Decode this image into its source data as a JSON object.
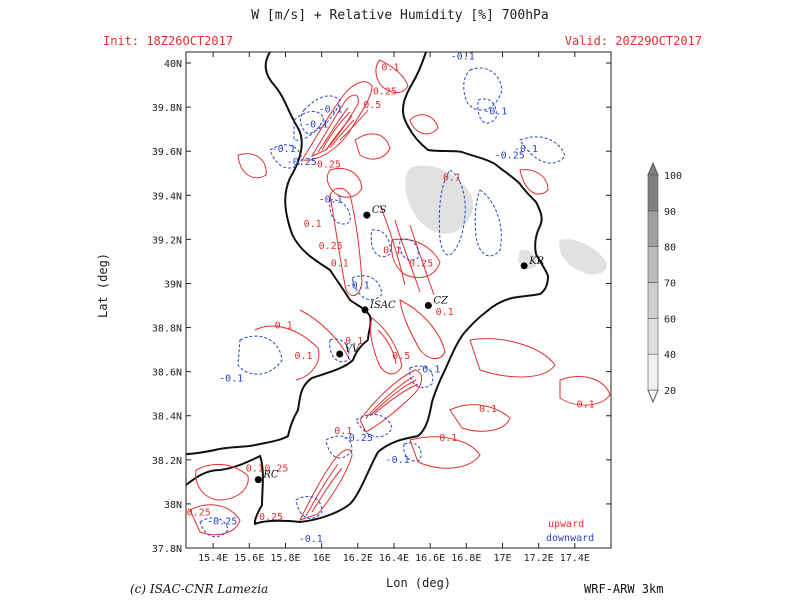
{
  "header": {
    "title": "W [m/s] + Relative Humidity [%] 700hPa",
    "init": "Init: 18Z26OCT2017",
    "valid": "Valid: 20Z29OCT2017"
  },
  "axes": {
    "xlabel": "Lon (deg)",
    "ylabel": "Lat (deg)",
    "lon_range": [
      15.25,
      17.6
    ],
    "lat_range": [
      37.8,
      40.05
    ],
    "lon_ticks": [
      "15.4E",
      "15.6E",
      "15.8E",
      "16E",
      "16.2E",
      "16.4E",
      "16.6E",
      "16.8E",
      "17E",
      "17.2E",
      "17.4E"
    ],
    "lon_values": [
      15.4,
      15.6,
      15.8,
      16.0,
      16.2,
      16.4,
      16.6,
      16.8,
      17.0,
      17.2,
      17.4
    ],
    "lat_ticks": [
      "37.8N",
      "38N",
      "38.2N",
      "38.4N",
      "38.6N",
      "38.8N",
      "39N",
      "39.2N",
      "39.4N",
      "39.6N",
      "39.8N",
      "40N"
    ],
    "lat_values": [
      37.8,
      38.0,
      38.2,
      38.4,
      38.6,
      38.8,
      39.0,
      39.2,
      39.4,
      39.6,
      39.8,
      40.0
    ]
  },
  "colorbar": {
    "labels": [
      "20",
      "40",
      "60",
      "70",
      "80",
      "90",
      "100"
    ],
    "colors": [
      "#ffffff",
      "#f0f0f0",
      "#e0e0e0",
      "#cfcfcf",
      "#bbbbbb",
      "#a0a0a0",
      "#808080"
    ]
  },
  "cities": [
    {
      "name": "CS",
      "lon": 16.25,
      "lat": 39.31
    },
    {
      "name": "KR",
      "lon": 17.12,
      "lat": 39.08
    },
    {
      "name": "CZ",
      "lon": 16.59,
      "lat": 38.9
    },
    {
      "name": "ISAC",
      "lon": 16.24,
      "lat": 38.88
    },
    {
      "name": "VV",
      "lon": 16.1,
      "lat": 38.68
    },
    {
      "name": "RC",
      "lon": 15.65,
      "lat": 38.11
    }
  ],
  "contour_labels": [
    {
      "text": "0.1",
      "lon": 16.38,
      "lat": 39.98,
      "color": "red"
    },
    {
      "text": "-0.1",
      "lon": 16.78,
      "lat": 40.03,
      "color": "blue"
    },
    {
      "text": "0.25",
      "lon": 16.35,
      "lat": 39.87,
      "color": "red"
    },
    {
      "text": "0.5",
      "lon": 16.28,
      "lat": 39.81,
      "color": "red"
    },
    {
      "text": "-0.1",
      "lon": 16.05,
      "lat": 39.79,
      "color": "blue"
    },
    {
      "text": "-0.1",
      "lon": 15.97,
      "lat": 39.72,
      "color": "blue"
    },
    {
      "text": "-0.1",
      "lon": 16.96,
      "lat": 39.78,
      "color": "blue"
    },
    {
      "text": "-0.1",
      "lon": 15.79,
      "lat": 39.61,
      "color": "blue"
    },
    {
      "text": "-0.25",
      "lon": 15.89,
      "lat": 39.55,
      "color": "blue"
    },
    {
      "text": "0.25",
      "lon": 16.04,
      "lat": 39.54,
      "color": "red"
    },
    {
      "text": "-0.25",
      "lon": 17.04,
      "lat": 39.58,
      "color": "blue"
    },
    {
      "text": "-0.1",
      "lon": 17.13,
      "lat": 39.61,
      "color": "blue"
    },
    {
      "text": "0.1",
      "lon": 16.72,
      "lat": 39.48,
      "color": "red"
    },
    {
      "text": "-0.1",
      "lon": 16.05,
      "lat": 39.38,
      "color": "blue"
    },
    {
      "text": "0.1",
      "lon": 15.95,
      "lat": 39.27,
      "color": "red"
    },
    {
      "text": "0.25",
      "lon": 16.05,
      "lat": 39.17,
      "color": "red"
    },
    {
      "text": "0.1",
      "lon": 16.1,
      "lat": 39.09,
      "color": "red"
    },
    {
      "text": "0.1",
      "lon": 16.39,
      "lat": 39.15,
      "color": "red"
    },
    {
      "text": "0.25",
      "lon": 16.55,
      "lat": 39.09,
      "color": "red"
    },
    {
      "text": "-0.1",
      "lon": 16.2,
      "lat": 38.99,
      "color": "blue"
    },
    {
      "text": "0.1",
      "lon": 16.68,
      "lat": 38.87,
      "color": "red"
    },
    {
      "text": "0.1",
      "lon": 15.79,
      "lat": 38.81,
      "color": "red"
    },
    {
      "text": "0.1",
      "lon": 16.18,
      "lat": 38.74,
      "color": "red"
    },
    {
      "text": "0.1",
      "lon": 15.9,
      "lat": 38.67,
      "color": "red"
    },
    {
      "text": "0.5",
      "lon": 16.44,
      "lat": 38.67,
      "color": "red"
    },
    {
      "text": "-0.1",
      "lon": 16.59,
      "lat": 38.61,
      "color": "blue"
    },
    {
      "text": "-0.1",
      "lon": 15.5,
      "lat": 38.57,
      "color": "blue"
    },
    {
      "text": "0.1",
      "lon": 16.92,
      "lat": 38.43,
      "color": "red"
    },
    {
      "text": "0.1",
      "lon": 17.46,
      "lat": 38.45,
      "color": "red"
    },
    {
      "text": "0.1",
      "lon": 16.12,
      "lat": 38.33,
      "color": "red"
    },
    {
      "text": "-0.25",
      "lon": 16.2,
      "lat": 38.3,
      "color": "blue"
    },
    {
      "text": "0.1",
      "lon": 16.7,
      "lat": 38.3,
      "color": "red"
    },
    {
      "text": "-0.1",
      "lon": 16.42,
      "lat": 38.2,
      "color": "blue"
    },
    {
      "text": "0.25",
      "lon": 15.75,
      "lat": 38.16,
      "color": "red"
    },
    {
      "text": "0.1",
      "lon": 15.63,
      "lat": 38.16,
      "color": "red"
    },
    {
      "text": "0.25",
      "lon": 15.32,
      "lat": 37.96,
      "color": "red"
    },
    {
      "text": "0.25",
      "lon": 15.72,
      "lat": 37.94,
      "color": "red"
    },
    {
      "text": "-0.25",
      "lon": 15.45,
      "lat": 37.92,
      "color": "blue"
    },
    {
      "text": "-0.1",
      "lon": 15.94,
      "lat": 37.84,
      "color": "blue"
    }
  ],
  "legend": {
    "upward": "upward",
    "downward": "downward",
    "upward_color": "#e03030",
    "downward_color": "#2b44c8"
  },
  "footer": {
    "credit": "(c) ISAC-CNR Lamezia",
    "model": "WRF-ARW 3km"
  }
}
